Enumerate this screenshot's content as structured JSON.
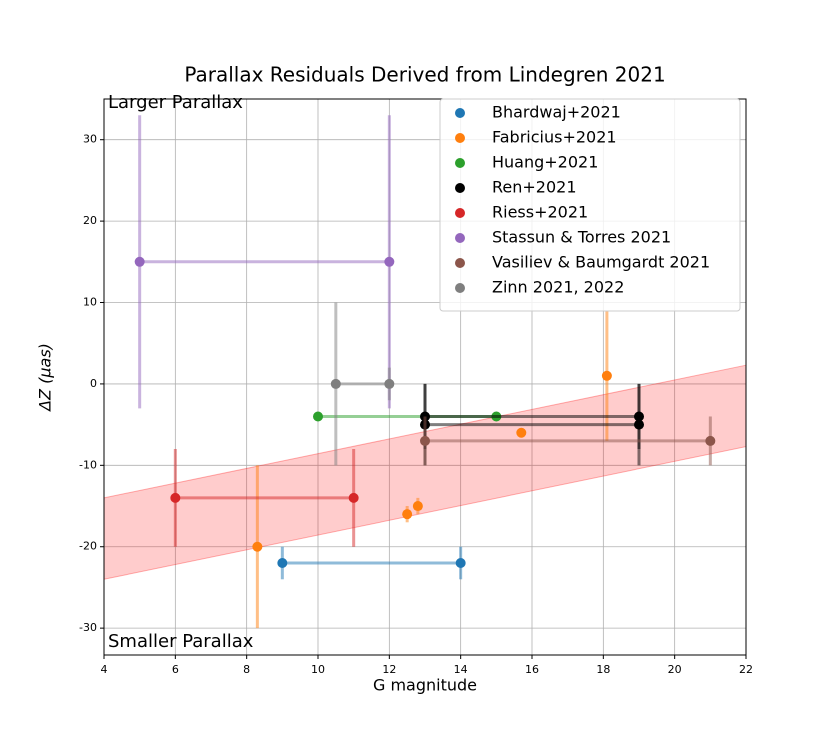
{
  "chart_data": {
    "type": "errorbar",
    "title": "Parallax Residuals Derived from Lindegren 2021",
    "x_label": "G magnitude",
    "y_label": "ΔZ (μas)",
    "annotations": [
      "Larger Parallax",
      "Smaller Parallax"
    ],
    "xlim": [
      4,
      22
    ],
    "xticks": [
      4,
      6,
      8,
      10,
      12,
      14,
      16,
      18,
      20,
      22
    ],
    "ylim": [
      -33.3,
      35
    ],
    "yticks": [
      -30,
      -20,
      -10,
      0,
      10,
      20,
      30
    ],
    "grid": true,
    "legend": "upper right",
    "band": {
      "color": "#ff0000",
      "x": [
        4,
        22
      ],
      "upper": [
        -14,
        2.3
      ],
      "lower": [
        -24,
        -7.7
      ]
    },
    "series": [
      {
        "name": "Bhardwaj+2021",
        "color": "#1f77b4",
        "x": [
          9,
          14
        ],
        "values": [
          -22,
          -22
        ],
        "yerr": [
          2,
          2
        ]
      },
      {
        "name": "Fabricius+2021",
        "color": "#ff7f0e",
        "x": [
          8.3,
          null,
          12.5,
          null,
          12.8,
          null,
          15.7,
          null,
          18.1
        ],
        "values": [
          -20,
          null,
          -16,
          null,
          -15,
          null,
          -6,
          null,
          1
        ],
        "yerr": [
          10,
          null,
          1,
          null,
          1,
          null,
          0.5,
          null,
          8
        ]
      },
      {
        "name": "Huang+2021",
        "color": "#2ca02c",
        "x": [
          10,
          15
        ],
        "values": [
          -4,
          -4
        ],
        "yerr": [
          0,
          0
        ]
      },
      {
        "name": "Ren+2021",
        "color": "#000000",
        "x": [
          13,
          19,
          null,
          13,
          19
        ],
        "values": [
          -4,
          -4,
          null,
          -5,
          -5
        ],
        "yerr": [
          4,
          4,
          null,
          5,
          5
        ]
      },
      {
        "name": "Riess+2021",
        "color": "#d62728",
        "x": [
          6,
          11
        ],
        "values": [
          -14,
          -14
        ],
        "yerr": [
          6,
          6
        ]
      },
      {
        "name": "Stassun & Torres 2021",
        "color": "#9467bd",
        "x": [
          5,
          12
        ],
        "values": [
          15,
          15
        ],
        "yerr": [
          18,
          18
        ]
      },
      {
        "name": "Vasiliev & Baumgardt 2021",
        "color": "#8c564b",
        "x": [
          13,
          21
        ],
        "values": [
          -7,
          -7
        ],
        "yerr": [
          3,
          3
        ]
      },
      {
        "name": "Zinn 2021, 2022",
        "color": "#7f7f7f",
        "x": [
          10.5,
          12
        ],
        "values": [
          0,
          0
        ],
        "yerr": [
          10,
          2
        ]
      }
    ]
  }
}
